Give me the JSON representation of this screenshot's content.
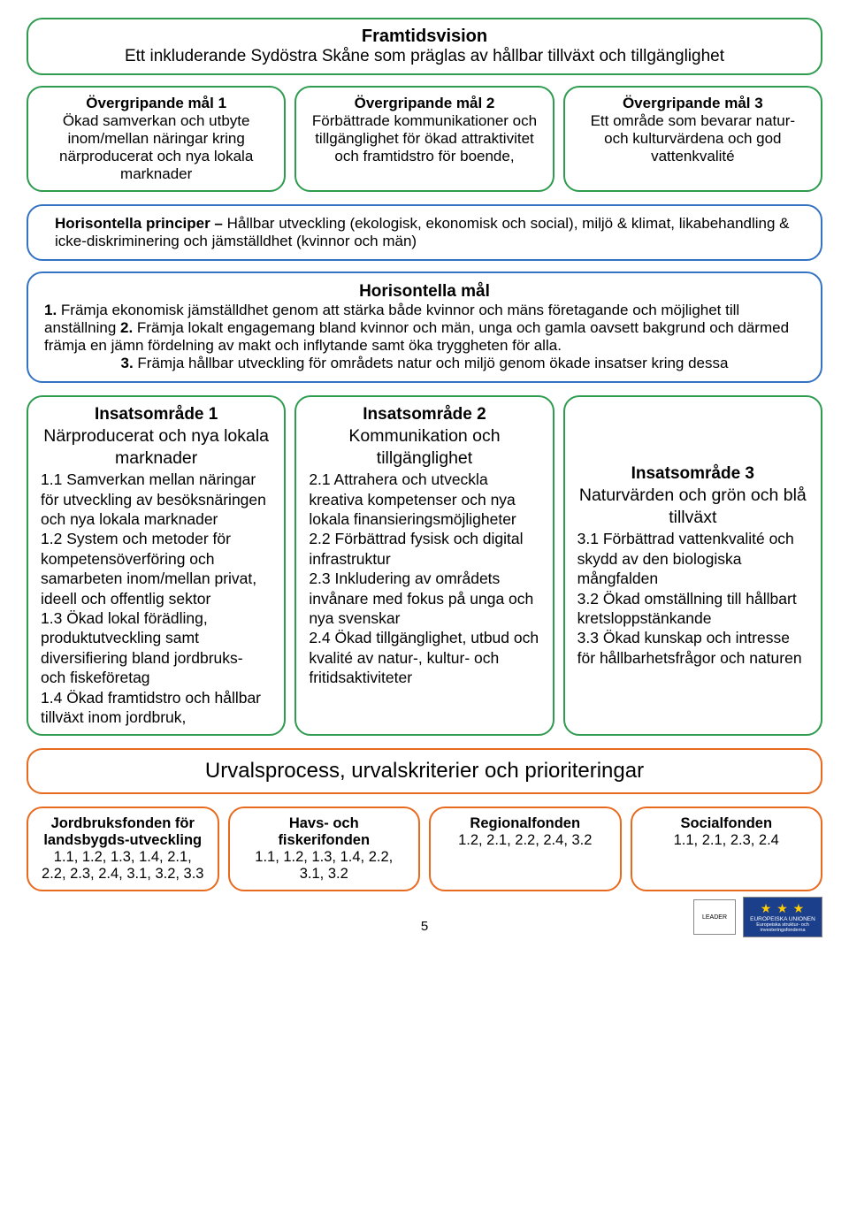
{
  "colors": {
    "green_border": "#2e9b4f",
    "blue_border": "#3473c4",
    "orange_border": "#e86a1e",
    "background": "#ffffff",
    "text": "#000000",
    "eu_blue": "#1b3f8b",
    "eu_yellow": "#ffcc00"
  },
  "page_number": "5",
  "vision": {
    "title": "Framtidsvision",
    "subtitle": "Ett inkluderande Sydöstra Skåne som präglas av hållbar tillväxt och tillgänglighet"
  },
  "goals": [
    {
      "title": "Övergripande mål 1",
      "body": "Ökad samverkan och utbyte inom/mellan näringar kring närproducerat och nya lokala marknader"
    },
    {
      "title": "Övergripande mål 2",
      "body": "Förbättrade kommunikationer och tillgänglighet för ökad attraktivitet och framtidstro för boende,"
    },
    {
      "title": "Övergripande mål 3",
      "body": "Ett område som bevarar natur- och kulturvärdena och god vattenkvalité"
    }
  ],
  "principles": {
    "lead_bold": "Horisontella principer – ",
    "lead_rest": "Hållbar utveckling (ekologisk, ekonomisk och social), miljö & klimat, likabehandling & icke-diskriminering och jämställdhet (kvinnor och män)"
  },
  "hmal": {
    "title": "Horisontella mål",
    "b1": "1. ",
    "t1": "Främja ekonomisk jämställdhet genom att stärka både kvinnor och mäns företagande och möjlighet till anställning ",
    "b2": "2. ",
    "t2": "Främja lokalt engagemang bland kvinnor och män, unga och gamla oavsett bakgrund och därmed främja en jämn fördelning av makt och inflytande samt öka tryggheten för alla.",
    "b3": "3. ",
    "t3": "Främja hållbar utveckling för områdets natur och miljö genom ökade insatser kring dessa"
  },
  "areas": [
    {
      "title": "Insatsområde 1",
      "sub": "Närproducerat och nya lokala marknader",
      "body": "1.1 Samverkan mellan näringar för utveckling av besöksnäringen och nya lokala marknader\n1.2 System och metoder för kompetensöverföring och samarbeten inom/mellan privat, ideell och offentlig sektor\n1.3 Ökad lokal förädling, produktutveckling samt diversifiering bland jordbruks- och fiskeföretag\n1.4 Ökad framtidstro och hållbar tillväxt inom jordbruk,"
    },
    {
      "title": "Insatsområde 2",
      "sub": "Kommunikation och tillgänglighet",
      "body": "2.1 Attrahera och utveckla kreativa kompetenser och nya lokala finansieringsmöjligheter\n2.2 Förbättrad fysisk och digital infrastruktur\n2.3 Inkludering av områdets invånare med fokus på unga och nya svenskar\n2.4 Ökad tillgänglighet, utbud och kvalité av natur-, kultur- och fritidsaktiviteter"
    },
    {
      "title": "Insatsområde 3",
      "sub": "Naturvärden och grön och blå tillväxt",
      "body": "3.1 Förbättrad vattenkvalité och skydd av den biologiska mångfalden\n3.2 Ökad omställning till hållbart kretsloppstänkande\n3.3 Ökad kunskap och intresse för hållbarhetsfrågor och naturen"
    }
  ],
  "urval": "Urvalsprocess, urvalskriterier och prioriteringar",
  "funds": [
    {
      "title": "Jordbruksfonden för landsbygds-utveckling",
      "nums": "1.1, 1.2, 1.3, 1.4, 2.1, 2.2, 2.3, 2.4, 3.1, 3.2, 3.3"
    },
    {
      "title": "Havs- och fiskerifonden",
      "nums": "1.1, 1.2, 1.3, 1.4, 2.2, 3.1, 3.2"
    },
    {
      "title": "Regionalfonden",
      "nums": "1.2, 2.1, 2.2, 2.4, 3.2"
    },
    {
      "title": "Socialfonden",
      "nums": "1.1, 2.1, 2.3, 2.4"
    }
  ],
  "logos": {
    "leader": "LEADER",
    "eu_line1": "EUROPEISKA UNIONEN",
    "eu_line2": "Europeiska struktur- och investeringsfonderna"
  }
}
